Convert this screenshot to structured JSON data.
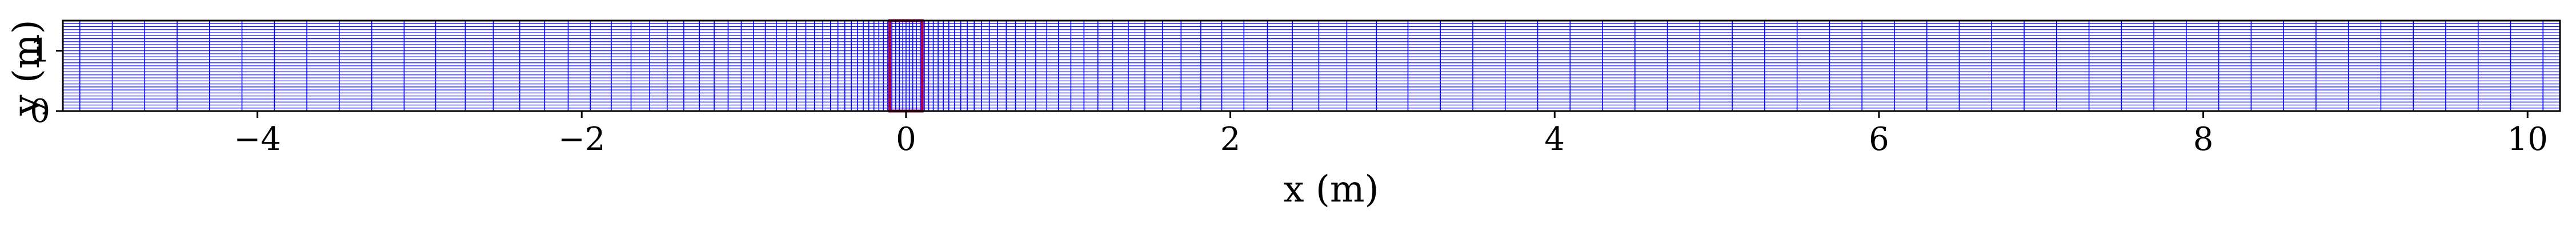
{
  "chart_data": {
    "type": "mesh",
    "xlabel": "x (m)",
    "ylabel": "y (m)",
    "xlim": [
      -5.2,
      10.2
    ],
    "ylim": [
      0,
      1.5
    ],
    "x_ticks": [
      {
        "value": -4,
        "label": "−4"
      },
      {
        "value": -2,
        "label": "−2"
      },
      {
        "value": 0,
        "label": "0"
      },
      {
        "value": 2,
        "label": "2"
      },
      {
        "value": 4,
        "label": "4"
      },
      {
        "value": 6,
        "label": "6"
      },
      {
        "value": 8,
        "label": "8"
      },
      {
        "value": 10,
        "label": "10"
      }
    ],
    "y_ticks": [
      {
        "value": 0,
        "label": "0"
      },
      {
        "value": 1,
        "label": "1"
      }
    ],
    "mesh": {
      "x_min": -5.2,
      "x_max": 10.2,
      "y_min": 0,
      "y_max": 1.5,
      "refined_center": 0,
      "min_cell_width": 0.02,
      "max_cell_width": 0.2,
      "row_count": 30,
      "line_color": "#0000ff"
    },
    "highlight_box": {
      "x_min": -0.1,
      "x_max": 0.1,
      "y_min": 0,
      "y_max": 1.5,
      "color": "#aa0044"
    },
    "grid": false,
    "legend": "none"
  }
}
